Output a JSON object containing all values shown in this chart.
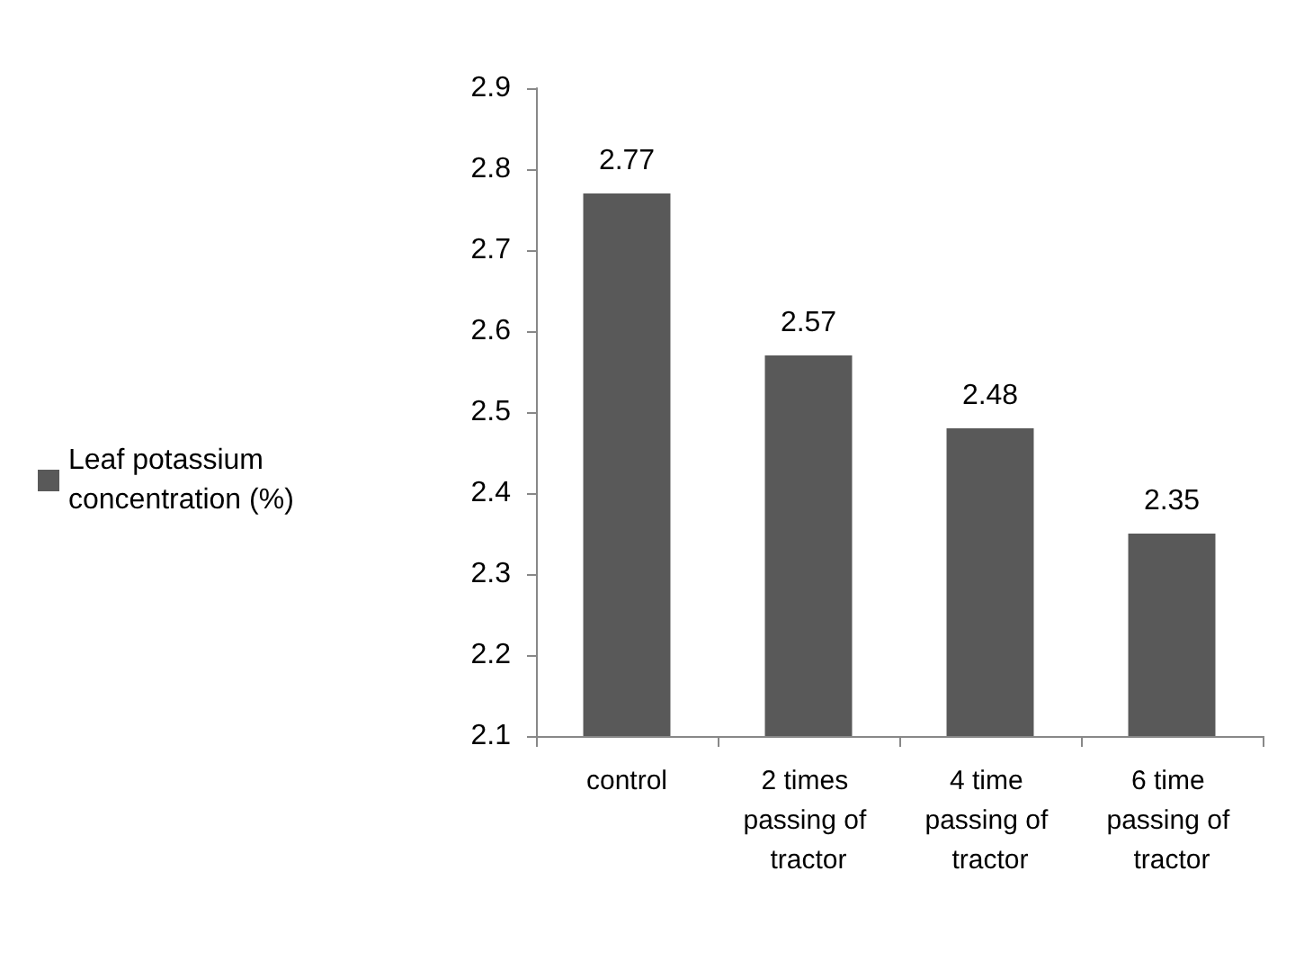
{
  "chart_data": {
    "type": "bar",
    "categories": [
      "control",
      "2 times passing of tractor",
      "4 time passing of tractor",
      "6 time passing of tractor"
    ],
    "series": [
      {
        "name": "Leaf potassium concentration (%)",
        "color": "#595959",
        "values": [
          2.77,
          2.57,
          2.48,
          2.35
        ]
      }
    ],
    "ylim": [
      2.1,
      2.9
    ],
    "yticks": [
      2.1,
      2.2,
      2.3,
      2.4,
      2.5,
      2.6,
      2.7,
      2.8,
      2.9
    ],
    "grid": false,
    "legend": "left",
    "data_labels": true
  }
}
